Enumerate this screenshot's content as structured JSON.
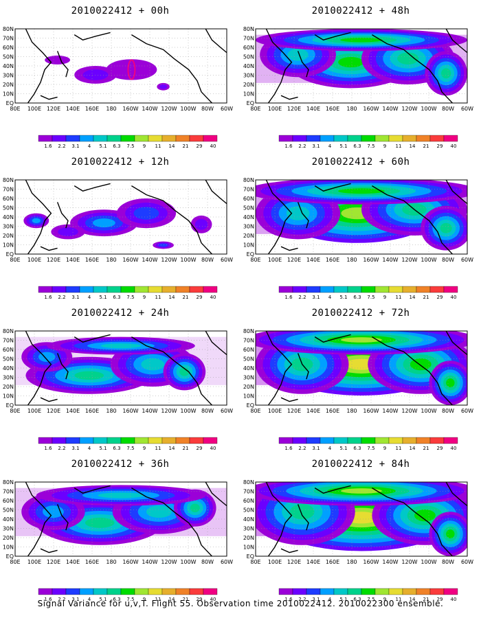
{
  "figure": {
    "caption": "Signal Variance for u,v,T. Flight 55. Observation time 2010022412. 2010022300 ensemble.",
    "lat_labels": [
      "EQ",
      "10N",
      "20N",
      "30N",
      "40N",
      "50N",
      "60N",
      "70N",
      "80N"
    ],
    "lon_labels": [
      "80E",
      "100E",
      "120E",
      "140E",
      "160E",
      "180",
      "160W",
      "140W",
      "120W",
      "100W",
      "80W",
      "60W"
    ],
    "legend": {
      "labels": [
        "1.6",
        "2.2",
        "3.1",
        "4",
        "5.1",
        "6.3",
        "7.5",
        "9",
        "11",
        "14",
        "21",
        "29",
        "40"
      ],
      "colors": [
        "#9b00d8",
        "#6b00ff",
        "#1e3cff",
        "#00a0ff",
        "#00c8c8",
        "#00d28c",
        "#00dc00",
        "#a0e632",
        "#e6dc32",
        "#e6af2d",
        "#f08228",
        "#fa3c3c",
        "#f00082"
      ]
    },
    "panels": [
      {
        "title": "2010022412 + 00h",
        "spread": 0.28
      },
      {
        "title": "2010022412 + 12h",
        "spread": 0.45
      },
      {
        "title": "2010022412 + 24h",
        "spread": 0.7
      },
      {
        "title": "2010022412 + 36h",
        "spread": 0.78
      },
      {
        "title": "2010022412 + 48h",
        "spread": 0.85
      },
      {
        "title": "2010022412 + 60h",
        "spread": 0.92
      },
      {
        "title": "2010022412 + 72h",
        "spread": 0.97
      },
      {
        "title": "2010022412 + 84h",
        "spread": 1.0
      }
    ]
  }
}
